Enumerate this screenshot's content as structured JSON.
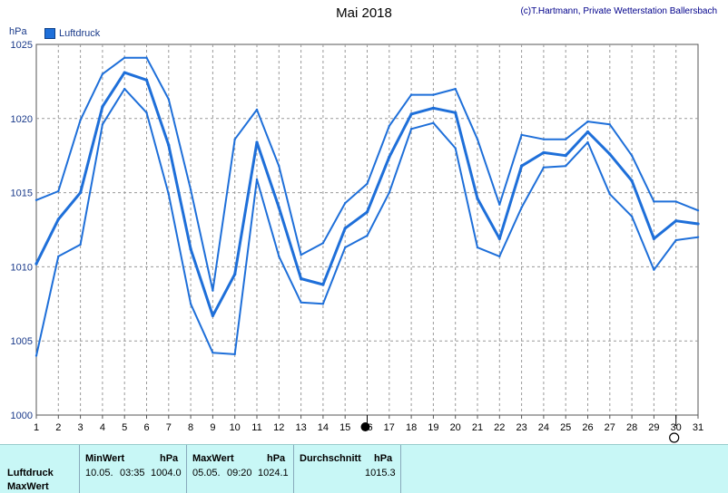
{
  "header": {
    "title": "Mai 2018",
    "credit": "(c)T.Hartmann, Private Wetterstation Ballersbach",
    "unit_label": "hPa",
    "legend_label": "Luftdruck"
  },
  "colors": {
    "series": "#1e6fd9",
    "grid": "#9a9a9a",
    "footer_bg": "#c8f7f6"
  },
  "chart_data": {
    "type": "line",
    "x": [
      1,
      2,
      3,
      4,
      5,
      6,
      7,
      8,
      9,
      10,
      11,
      12,
      13,
      14,
      15,
      16,
      17,
      18,
      19,
      20,
      21,
      22,
      23,
      24,
      25,
      26,
      27,
      28,
      29,
      30,
      31
    ],
    "xticks": [
      "1",
      "2",
      "3",
      "4",
      "5",
      "6",
      "7",
      "8",
      "9",
      "10",
      "11",
      "12",
      "13",
      "14",
      "15",
      "16",
      "17",
      "18",
      "19",
      "20",
      "21",
      "22",
      "23",
      "24",
      "25",
      "26",
      "27",
      "28",
      "29",
      "30",
      "31"
    ],
    "ylim": [
      1000,
      1025
    ],
    "yticks": [
      "1000",
      "1005",
      "1010",
      "1015",
      "1020",
      "1025"
    ],
    "ylabel": "hPa",
    "grid": true,
    "legend": "top-left",
    "series": [
      {
        "name": "Luftdruck",
        "role": "max",
        "values": [
          1014.5,
          1015.1,
          1019.9,
          1023.0,
          1024.1,
          1024.1,
          1021.3,
          1015.2,
          1008.4,
          1018.6,
          1020.6,
          1016.8,
          1010.8,
          1011.6,
          1014.3,
          1015.6,
          1019.5,
          1021.6,
          1021.6,
          1022.0,
          1018.6,
          1014.2,
          1018.9,
          1018.6,
          1018.6,
          1019.8,
          1019.6,
          1017.5,
          1014.4,
          1014.4,
          1013.8
        ]
      },
      {
        "name": "Luftdruck",
        "role": "mean",
        "values": [
          1010.2,
          1013.2,
          1015.0,
          1020.8,
          1023.1,
          1022.6,
          1018.2,
          1011.2,
          1006.7,
          1009.5,
          1018.4,
          1014.0,
          1009.2,
          1008.8,
          1012.6,
          1013.7,
          1017.4,
          1020.3,
          1020.7,
          1020.4,
          1014.6,
          1011.9,
          1016.8,
          1017.7,
          1017.5,
          1019.1,
          1017.6,
          1015.8,
          1011.9,
          1013.1,
          1012.9
        ]
      },
      {
        "name": "Luftdruck",
        "role": "min",
        "values": [
          1004.0,
          1010.7,
          1011.5,
          1019.6,
          1022.0,
          1020.4,
          1014.9,
          1007.5,
          1004.2,
          1004.1,
          1015.9,
          1010.7,
          1007.6,
          1007.5,
          1011.3,
          1012.1,
          1015.0,
          1019.3,
          1019.7,
          1018.0,
          1011.3,
          1010.7,
          1014.0,
          1016.7,
          1016.8,
          1018.4,
          1014.9,
          1013.4,
          1009.8,
          1011.8,
          1012.0
        ]
      }
    ],
    "markers": [
      {
        "x": 16,
        "type": "new-moon"
      },
      {
        "x": 30,
        "type": "full-moon"
      }
    ]
  },
  "footer": {
    "row_labels": [
      "Luftdruck",
      "MaxWert"
    ],
    "columns": [
      {
        "header": "MinWert",
        "unit": "hPa",
        "date": "10.05.",
        "time": "03:35",
        "value": "1004.0"
      },
      {
        "header": "MaxWert",
        "unit": "hPa",
        "date": "05.05.",
        "time": "09:20",
        "value": "1024.1"
      },
      {
        "header": "Durchschnitt",
        "unit": "hPa",
        "date": "",
        "time": "",
        "value": "1015.3"
      }
    ]
  }
}
